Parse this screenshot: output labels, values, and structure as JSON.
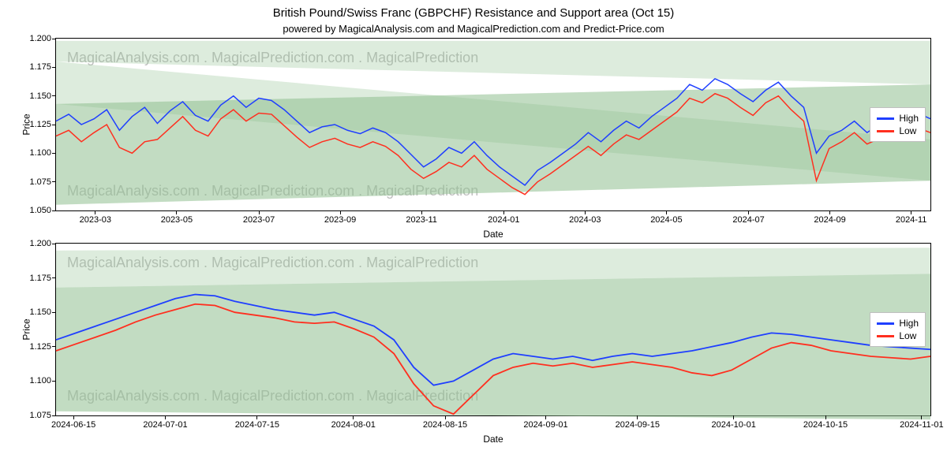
{
  "title": "British Pound/Swiss Franc (GBPCHF) Resistance and Support area (Oct 15)",
  "subtitle": "powered by MagicalAnalysis.com and MagicalPrediction.com and Predict-Price.com",
  "watermark_text": "MagicalAnalysis.com . MagicalPrediction.com . MagicalPrediction",
  "legend": {
    "high": "High",
    "low": "Low"
  },
  "colors": {
    "high_line": "#1f3fff",
    "low_line": "#ff2f1f",
    "band_fill": "#8fbf8f",
    "band_fill_light": "#c8dfc8",
    "border": "#000000",
    "grid": "#000000",
    "watermark": "#bfbfbf",
    "background": "#ffffff"
  },
  "chart1": {
    "type": "line",
    "ylabel": "Price",
    "xlabel": "Date",
    "ylim": [
      1.05,
      1.2
    ],
    "ytick_step": 0.025,
    "yticks": [
      "1.050",
      "1.075",
      "1.100",
      "1.125",
      "1.150",
      "1.175",
      "1.200"
    ],
    "xticks": [
      "2023-03",
      "2023-05",
      "2023-07",
      "2023-09",
      "2023-11",
      "2024-01",
      "2024-03",
      "2024-05",
      "2024-07",
      "2024-09",
      "2024-11"
    ],
    "xtick_pos_pct": [
      4.5,
      13.8,
      23.2,
      32.5,
      41.8,
      51.2,
      60.5,
      69.8,
      79.2,
      88.5,
      97.8
    ],
    "line_width": 1.5,
    "band_opacity_dark": 0.55,
    "band_opacity_light": 0.3,
    "bands": [
      {
        "y0_start": 1.055,
        "y1_start": 1.143,
        "y0_end": 1.076,
        "y1_end": 1.16,
        "opacity": 0.55
      },
      {
        "y0_start": 1.143,
        "y1_start": 1.18,
        "y0_end": 1.076,
        "y1_end": 1.112,
        "opacity": 0.3
      },
      {
        "y0_start": 1.18,
        "y1_start": 1.198,
        "y0_end": 1.16,
        "y1_end": 1.198,
        "opacity": 0.3
      }
    ],
    "high": [
      1.128,
      1.134,
      1.125,
      1.13,
      1.138,
      1.12,
      1.132,
      1.14,
      1.126,
      1.137,
      1.145,
      1.133,
      1.128,
      1.142,
      1.15,
      1.14,
      1.148,
      1.146,
      1.138,
      1.128,
      1.118,
      1.123,
      1.125,
      1.12,
      1.117,
      1.122,
      1.118,
      1.11,
      1.099,
      1.088,
      1.095,
      1.105,
      1.1,
      1.11,
      1.098,
      1.088,
      1.08,
      1.072,
      1.085,
      1.092,
      1.1,
      1.108,
      1.118,
      1.11,
      1.12,
      1.128,
      1.122,
      1.132,
      1.14,
      1.148,
      1.16,
      1.155,
      1.165,
      1.16,
      1.152,
      1.145,
      1.155,
      1.162,
      1.15,
      1.14,
      1.1,
      1.115,
      1.12,
      1.128,
      1.118,
      1.125,
      1.132,
      1.128,
      1.135,
      1.13
    ],
    "low": [
      1.115,
      1.12,
      1.11,
      1.118,
      1.125,
      1.105,
      1.1,
      1.11,
      1.112,
      1.122,
      1.132,
      1.12,
      1.115,
      1.13,
      1.138,
      1.128,
      1.135,
      1.134,
      1.124,
      1.114,
      1.105,
      1.11,
      1.113,
      1.108,
      1.105,
      1.11,
      1.106,
      1.098,
      1.086,
      1.078,
      1.084,
      1.092,
      1.088,
      1.098,
      1.086,
      1.078,
      1.07,
      1.064,
      1.075,
      1.082,
      1.09,
      1.098,
      1.106,
      1.098,
      1.108,
      1.116,
      1.112,
      1.12,
      1.128,
      1.136,
      1.148,
      1.144,
      1.152,
      1.148,
      1.14,
      1.133,
      1.144,
      1.15,
      1.138,
      1.128,
      1.076,
      1.104,
      1.11,
      1.118,
      1.108,
      1.113,
      1.12,
      1.116,
      1.122,
      1.118
    ]
  },
  "chart2": {
    "type": "line",
    "ylabel": "Price",
    "xlabel": "Date",
    "ylim": [
      1.075,
      1.2
    ],
    "yticks": [
      "1.075",
      "1.100",
      "1.125",
      "1.150",
      "1.175",
      "1.200"
    ],
    "xticks": [
      "2024-06-15",
      "2024-07-01",
      "2024-07-15",
      "2024-08-01",
      "2024-08-15",
      "2024-09-01",
      "2024-09-15",
      "2024-10-01",
      "2024-10-15",
      "2024-11-01"
    ],
    "xtick_pos_pct": [
      2,
      12.5,
      23,
      34,
      44.5,
      56,
      66.5,
      77.5,
      88,
      99
    ],
    "line_width": 1.8,
    "band_opacity_dark": 0.55,
    "band_opacity_light": 0.3,
    "bands": [
      {
        "y0_start": 1.078,
        "y1_start": 1.168,
        "y0_end": 1.072,
        "y1_end": 1.178,
        "opacity": 0.55
      },
      {
        "y0_start": 1.168,
        "y1_start": 1.195,
        "y0_end": 1.178,
        "y1_end": 1.197,
        "opacity": 0.3
      }
    ],
    "high": [
      1.13,
      1.135,
      1.14,
      1.145,
      1.15,
      1.155,
      1.16,
      1.163,
      1.162,
      1.158,
      1.155,
      1.152,
      1.15,
      1.148,
      1.15,
      1.145,
      1.14,
      1.13,
      1.11,
      1.097,
      1.1,
      1.108,
      1.116,
      1.12,
      1.118,
      1.116,
      1.118,
      1.115,
      1.118,
      1.12,
      1.118,
      1.12,
      1.122,
      1.125,
      1.128,
      1.132,
      1.135,
      1.134,
      1.132,
      1.13,
      1.128,
      1.126,
      1.125,
      1.124,
      1.123
    ],
    "low": [
      1.122,
      1.127,
      1.132,
      1.137,
      1.143,
      1.148,
      1.152,
      1.156,
      1.155,
      1.15,
      1.148,
      1.146,
      1.143,
      1.142,
      1.143,
      1.138,
      1.132,
      1.12,
      1.098,
      1.082,
      1.076,
      1.09,
      1.104,
      1.11,
      1.113,
      1.111,
      1.113,
      1.11,
      1.112,
      1.114,
      1.112,
      1.11,
      1.106,
      1.104,
      1.108,
      1.116,
      1.124,
      1.128,
      1.126,
      1.122,
      1.12,
      1.118,
      1.117,
      1.116,
      1.118
    ]
  }
}
